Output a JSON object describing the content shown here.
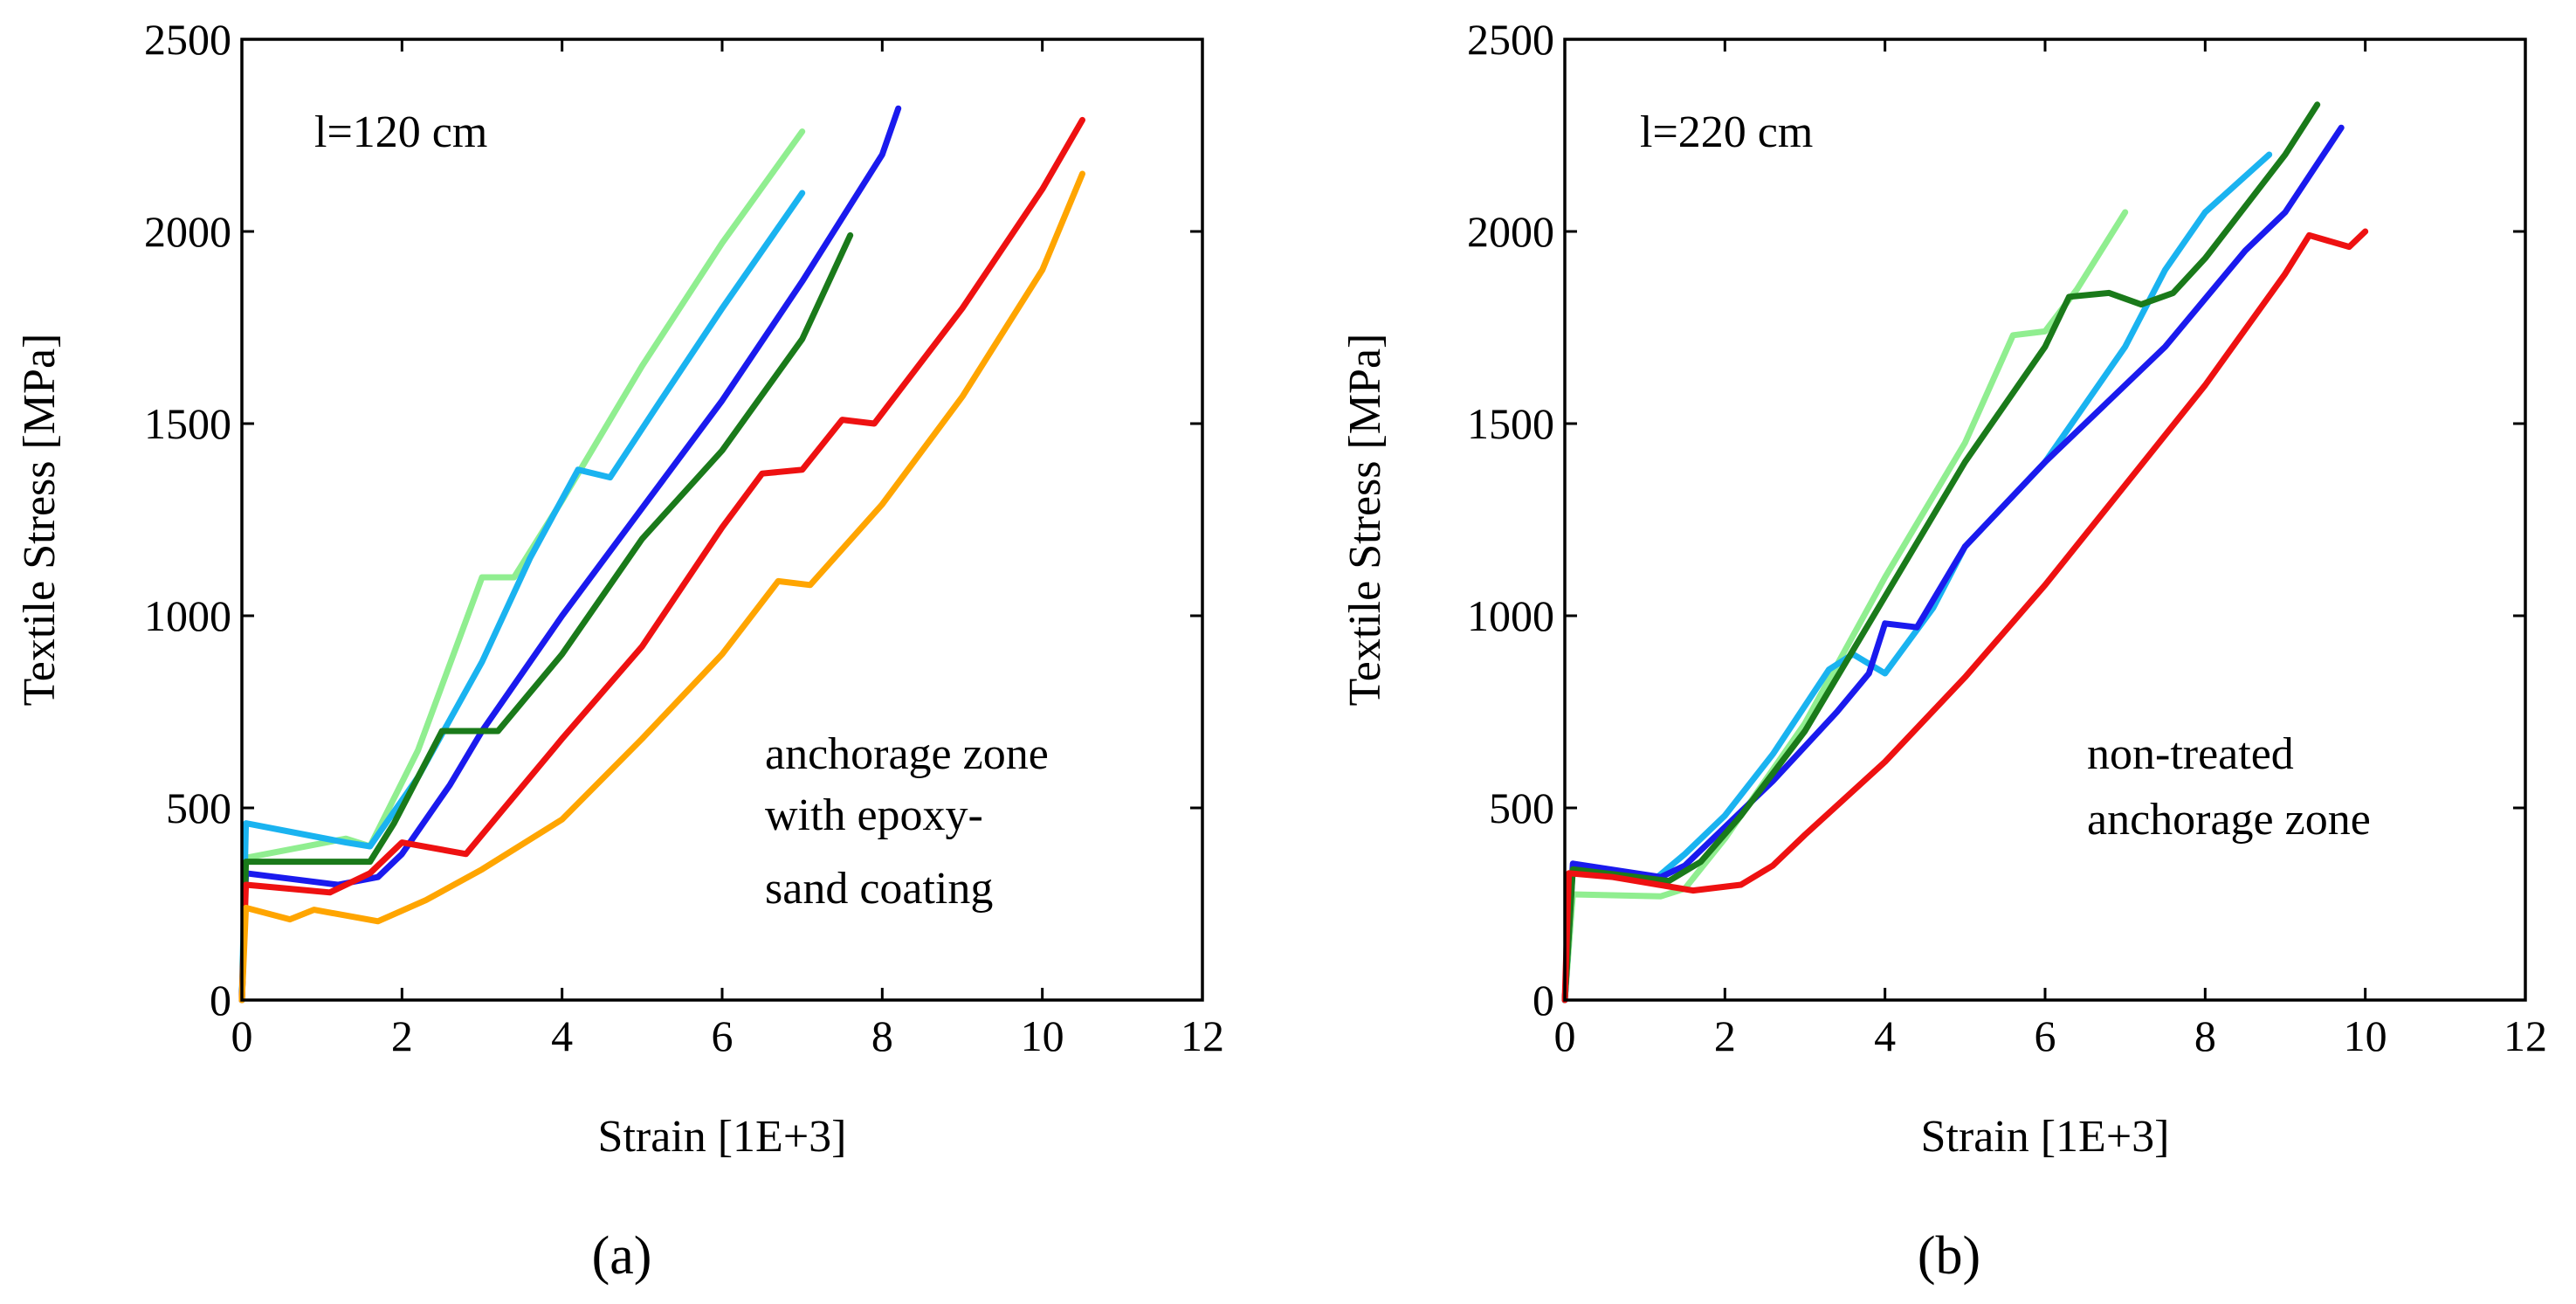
{
  "chart_data": [
    {
      "type": "line",
      "panel_label": "(a)",
      "annotation": "l=120 cm",
      "note_lines": [
        "anchorage zone",
        "with epoxy-",
        "sand coating"
      ],
      "xlabel": "Strain [1E+3]",
      "ylabel": "Textile Stress [MPa]",
      "xlim": [
        0,
        12
      ],
      "ylim": [
        0,
        2500
      ],
      "xticks": [
        0,
        2,
        4,
        6,
        8,
        10,
        12
      ],
      "yticks": [
        0,
        500,
        1000,
        1500,
        2000,
        2500
      ],
      "series": [
        {
          "name": "specimen-light-green",
          "color": "#90ee90",
          "points": [
            [
              0,
              0
            ],
            [
              0.05,
              370
            ],
            [
              1.3,
              420
            ],
            [
              1.6,
              400
            ],
            [
              2.2,
              650
            ],
            [
              3,
              1100
            ],
            [
              3.4,
              1100
            ],
            [
              4,
              1300
            ],
            [
              5,
              1650
            ],
            [
              6,
              1970
            ],
            [
              7,
              2260
            ]
          ]
        },
        {
          "name": "specimen-light-blue",
          "color": "#1ab3f0",
          "points": [
            [
              0,
              0
            ],
            [
              0.05,
              460
            ],
            [
              1.3,
              410
            ],
            [
              1.6,
              400
            ],
            [
              2.2,
              580
            ],
            [
              3,
              880
            ],
            [
              3.6,
              1150
            ],
            [
              4.2,
              1380
            ],
            [
              4.6,
              1360
            ],
            [
              5.2,
              1550
            ],
            [
              6,
              1800
            ],
            [
              7,
              2100
            ]
          ]
        },
        {
          "name": "specimen-blue",
          "color": "#1a1aee",
          "points": [
            [
              0,
              0
            ],
            [
              0.05,
              330
            ],
            [
              1.2,
              300
            ],
            [
              1.7,
              320
            ],
            [
              2,
              380
            ],
            [
              2.6,
              560
            ],
            [
              3,
              700
            ],
            [
              4,
              1000
            ],
            [
              5,
              1280
            ],
            [
              6,
              1560
            ],
            [
              7,
              1870
            ],
            [
              8,
              2200
            ],
            [
              8.2,
              2320
            ]
          ]
        },
        {
          "name": "specimen-dark-green",
          "color": "#1a7a1a",
          "points": [
            [
              0,
              0
            ],
            [
              0.05,
              360
            ],
            [
              1.6,
              360
            ],
            [
              1.9,
              460
            ],
            [
              2.5,
              700
            ],
            [
              3.2,
              700
            ],
            [
              4,
              900
            ],
            [
              5,
              1200
            ],
            [
              6,
              1430
            ],
            [
              7,
              1720
            ],
            [
              7.6,
              1990
            ]
          ]
        },
        {
          "name": "specimen-red",
          "color": "#ee1111",
          "points": [
            [
              0,
              0
            ],
            [
              0.05,
              300
            ],
            [
              1.1,
              280
            ],
            [
              1.6,
              330
            ],
            [
              2,
              410
            ],
            [
              2.8,
              380
            ],
            [
              3.2,
              480
            ],
            [
              4,
              680
            ],
            [
              5,
              920
            ],
            [
              6,
              1230
            ],
            [
              6.5,
              1370
            ],
            [
              7,
              1380
            ],
            [
              7.5,
              1510
            ],
            [
              7.9,
              1500
            ],
            [
              9,
              1800
            ],
            [
              10,
              2110
            ],
            [
              10.5,
              2290
            ]
          ]
        },
        {
          "name": "specimen-orange",
          "color": "#ffa500",
          "points": [
            [
              0,
              0
            ],
            [
              0.05,
              240
            ],
            [
              0.6,
              210
            ],
            [
              0.9,
              235
            ],
            [
              1.7,
              205
            ],
            [
              2.3,
              260
            ],
            [
              3,
              340
            ],
            [
              4,
              470
            ],
            [
              5,
              680
            ],
            [
              6,
              900
            ],
            [
              6.7,
              1090
            ],
            [
              7.1,
              1080
            ],
            [
              8,
              1290
            ],
            [
              9,
              1570
            ],
            [
              10,
              1900
            ],
            [
              10.5,
              2150
            ]
          ]
        }
      ]
    },
    {
      "type": "line",
      "panel_label": "(b)",
      "annotation": "l=220 cm",
      "note_lines": [
        "non-treated",
        "anchorage zone"
      ],
      "xlabel": "Strain [1E+3]",
      "ylabel": "Textile Stress [MPa]",
      "xlim": [
        0,
        12
      ],
      "ylim": [
        0,
        2500
      ],
      "xticks": [
        0,
        2,
        4,
        6,
        8,
        10,
        12
      ],
      "yticks": [
        0,
        500,
        1000,
        1500,
        2000,
        2500
      ],
      "series": [
        {
          "name": "specimen-light-green",
          "color": "#90ee90",
          "points": [
            [
              0,
              0
            ],
            [
              0.1,
              275
            ],
            [
              1.2,
              270
            ],
            [
              1.5,
              290
            ],
            [
              2,
              420
            ],
            [
              3,
              720
            ],
            [
              4,
              1100
            ],
            [
              5,
              1450
            ],
            [
              5.6,
              1730
            ],
            [
              6,
              1740
            ],
            [
              6.4,
              1850
            ],
            [
              7,
              2050
            ]
          ]
        },
        {
          "name": "specimen-light-blue",
          "color": "#1ab3f0",
          "points": [
            [
              0,
              0
            ],
            [
              0.1,
              345
            ],
            [
              1.1,
              310
            ],
            [
              1.5,
              380
            ],
            [
              2,
              480
            ],
            [
              2.6,
              640
            ],
            [
              3.3,
              860
            ],
            [
              3.6,
              900
            ],
            [
              4,
              850
            ],
            [
              4.6,
              1020
            ],
            [
              5,
              1180
            ],
            [
              6,
              1400
            ],
            [
              7,
              1700
            ],
            [
              7.5,
              1900
            ],
            [
              8,
              2050
            ],
            [
              8.8,
              2200
            ]
          ]
        },
        {
          "name": "specimen-blue",
          "color": "#1a1aee",
          "points": [
            [
              0,
              0
            ],
            [
              0.1,
              355
            ],
            [
              1.2,
              320
            ],
            [
              1.5,
              350
            ],
            [
              2,
              450
            ],
            [
              2.6,
              570
            ],
            [
              3.4,
              750
            ],
            [
              3.8,
              850
            ],
            [
              4,
              980
            ],
            [
              4.4,
              970
            ],
            [
              5,
              1180
            ],
            [
              6,
              1400
            ],
            [
              6.8,
              1560
            ],
            [
              7.5,
              1700
            ],
            [
              8.5,
              1950
            ],
            [
              9,
              2050
            ],
            [
              9.7,
              2270
            ]
          ]
        },
        {
          "name": "specimen-dark-green",
          "color": "#1a7a1a",
          "points": [
            [
              0,
              0
            ],
            [
              0.1,
              340
            ],
            [
              1.3,
              310
            ],
            [
              1.7,
              360
            ],
            [
              2.2,
              480
            ],
            [
              3,
              700
            ],
            [
              4,
              1050
            ],
            [
              5,
              1400
            ],
            [
              6,
              1700
            ],
            [
              6.3,
              1830
            ],
            [
              6.8,
              1840
            ],
            [
              7.2,
              1810
            ],
            [
              7.6,
              1840
            ],
            [
              8,
              1930
            ],
            [
              9,
              2200
            ],
            [
              9.4,
              2330
            ]
          ]
        },
        {
          "name": "specimen-red",
          "color": "#ee1111",
          "points": [
            [
              0,
              0
            ],
            [
              0.05,
              330
            ],
            [
              0.6,
              320
            ],
            [
              1.6,
              285
            ],
            [
              2.2,
              300
            ],
            [
              2.6,
              350
            ],
            [
              3,
              430
            ],
            [
              4,
              620
            ],
            [
              5,
              840
            ],
            [
              6,
              1080
            ],
            [
              7,
              1340
            ],
            [
              8,
              1600
            ],
            [
              9,
              1890
            ],
            [
              9.3,
              1990
            ],
            [
              9.8,
              1960
            ],
            [
              10,
              2000
            ]
          ]
        }
      ]
    }
  ]
}
